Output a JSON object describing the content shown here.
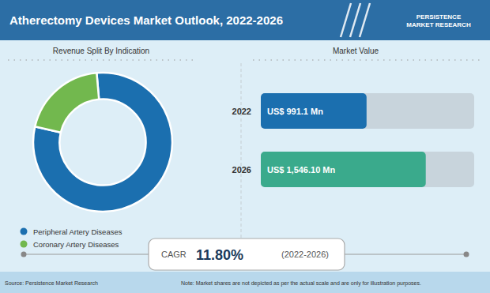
{
  "chart_data": [
    {
      "type": "donut",
      "title": "Atherectomy Devices Market Outlook, 2022-2026",
      "subtitle": "Revenue Split By Indication",
      "categories": [
        "Peripheral Artery Diseases",
        "Coronary Artery Diseases"
      ],
      "values": [
        80,
        20
      ],
      "colors": [
        "#1b6faf",
        "#72b84e"
      ],
      "legend": "bottom",
      "annotations": [
        "PERSISTENCE\nMARKET RESEARCH",
        "Source: Persistence Market Research",
        "Note: Market shares are not depicted as per the actual scale and are only for illustration purposes."
      ]
    },
    {
      "type": "bar",
      "title": "Market Value",
      "orientation": "horizontal",
      "categories": [
        "2022",
        "2026"
      ],
      "values": [
        991.1,
        1546.1
      ],
      "value_labels": [
        "US$ 991.1 Mn",
        "US$ 1,546.10 Mn"
      ],
      "data_labels": true,
      "colors": [
        "#1b6faf",
        "#3aaa8c"
      ],
      "xlim": [
        0,
        2000
      ],
      "tick_labels": "y",
      "annotations": [
        "CAGR",
        "11.80%",
        "(2022-2026)"
      ]
    }
  ]
}
